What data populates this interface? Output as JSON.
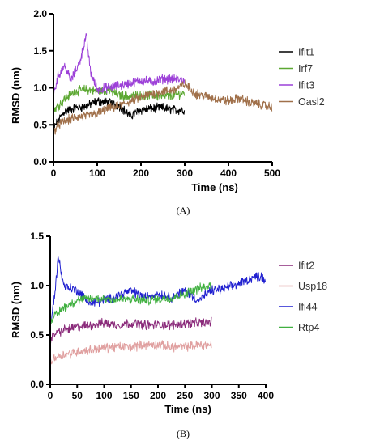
{
  "chart_data": [
    {
      "type": "line",
      "panel_label": "(A)",
      "xlabel": "Time (ns)",
      "ylabel": "RMSD (nm)",
      "xlim": [
        0,
        500
      ],
      "ylim": [
        0,
        2.0
      ],
      "xticks": [
        "0",
        "100",
        "200",
        "300",
        "400",
        "500"
      ],
      "yticks": [
        "0.0",
        "0.5",
        "1.0",
        "1.5",
        "2.0"
      ],
      "legend_position": "right",
      "grid": false,
      "series": [
        {
          "name": "Ifit1",
          "color": "#000000",
          "x": [
            0,
            10,
            25,
            50,
            75,
            100,
            125,
            150,
            175,
            200,
            225,
            250,
            275,
            300
          ],
          "y": [
            0.45,
            0.55,
            0.68,
            0.73,
            0.75,
            0.82,
            0.8,
            0.76,
            0.62,
            0.7,
            0.72,
            0.73,
            0.7,
            0.7
          ]
        },
        {
          "name": "Irf7",
          "color": "#5ca832",
          "x": [
            0,
            10,
            25,
            50,
            75,
            100,
            125,
            150,
            175,
            200,
            225,
            250,
            275,
            300
          ],
          "y": [
            0.7,
            0.75,
            0.85,
            0.95,
            0.98,
            0.95,
            0.97,
            0.9,
            0.88,
            0.9,
            0.9,
            0.88,
            0.9,
            0.93
          ]
        },
        {
          "name": "Ifit3",
          "color": "#9c40d8",
          "x": [
            0,
            10,
            25,
            40,
            60,
            75,
            85,
            100,
            125,
            150,
            175,
            200,
            225,
            250,
            275,
            300
          ],
          "y": [
            0.9,
            1.15,
            1.3,
            1.1,
            1.35,
            1.7,
            1.2,
            0.98,
            1.0,
            1.03,
            1.06,
            1.1,
            1.08,
            1.12,
            1.12,
            1.1
          ]
        },
        {
          "name": "Oasl2",
          "color": "#a0704a",
          "x": [
            0,
            10,
            25,
            50,
            75,
            100,
            125,
            150,
            175,
            200,
            225,
            250,
            275,
            300,
            325,
            350,
            375,
            400,
            425,
            450,
            475,
            500
          ],
          "y": [
            0.4,
            0.5,
            0.55,
            0.6,
            0.62,
            0.65,
            0.72,
            0.75,
            0.82,
            0.87,
            0.92,
            0.95,
            0.97,
            1.05,
            0.92,
            0.88,
            0.85,
            0.82,
            0.86,
            0.8,
            0.77,
            0.74
          ]
        }
      ]
    },
    {
      "type": "line",
      "panel_label": "(B)",
      "xlabel": "Time (ns)",
      "ylabel": "RMSD (nm)",
      "xlim": [
        0,
        400
      ],
      "ylim": [
        0,
        1.5
      ],
      "xticks": [
        "0",
        "50",
        "100",
        "150",
        "200",
        "250",
        "300",
        "350",
        "400"
      ],
      "yticks": [
        "0.0",
        "0.5",
        "1.0",
        "1.5"
      ],
      "legend_position": "right",
      "grid": false,
      "series": [
        {
          "name": "Ifit2",
          "color": "#8a2a7a",
          "x": [
            0,
            10,
            25,
            50,
            75,
            100,
            125,
            150,
            175,
            200,
            225,
            250,
            275,
            300
          ],
          "y": [
            0.45,
            0.52,
            0.55,
            0.58,
            0.6,
            0.62,
            0.6,
            0.62,
            0.6,
            0.6,
            0.6,
            0.62,
            0.62,
            0.63
          ]
        },
        {
          "name": "Usp18",
          "color": "#e0a0a0",
          "x": [
            0,
            10,
            25,
            50,
            75,
            100,
            125,
            150,
            175,
            200,
            225,
            250,
            275,
            300
          ],
          "y": [
            0.22,
            0.28,
            0.3,
            0.33,
            0.35,
            0.37,
            0.38,
            0.38,
            0.4,
            0.4,
            0.38,
            0.38,
            0.4,
            0.4
          ]
        },
        {
          "name": "Ifi44",
          "color": "#2020d0",
          "x": [
            0,
            10,
            15,
            25,
            50,
            75,
            100,
            125,
            150,
            175,
            200,
            225,
            250,
            275,
            300,
            325,
            350,
            375,
            390,
            400
          ],
          "y": [
            0.55,
            1.0,
            1.3,
            1.0,
            0.95,
            0.82,
            0.85,
            0.9,
            0.95,
            0.88,
            0.92,
            0.88,
            0.95,
            0.85,
            0.95,
            0.97,
            1.02,
            1.08,
            1.1,
            1.05
          ]
        },
        {
          "name": "Rtp4",
          "color": "#40b040",
          "x": [
            0,
            10,
            25,
            50,
            75,
            100,
            125,
            150,
            175,
            200,
            225,
            250,
            275,
            300
          ],
          "y": [
            0.65,
            0.7,
            0.78,
            0.85,
            0.87,
            0.87,
            0.86,
            0.86,
            0.85,
            0.86,
            0.88,
            0.92,
            0.97,
            1.0
          ]
        }
      ]
    }
  ]
}
